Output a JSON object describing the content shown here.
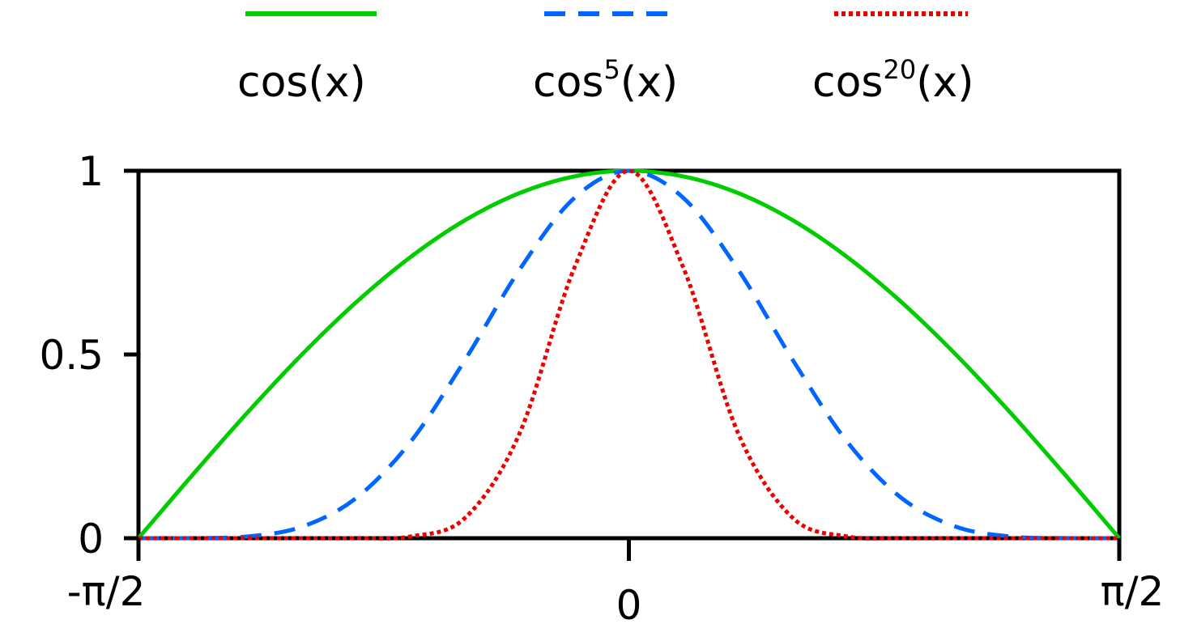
{
  "chart_data": {
    "type": "line",
    "title": "",
    "xlabel": "",
    "ylabel": "",
    "xlim": [
      -1.5708,
      1.5708
    ],
    "ylim": [
      0,
      1
    ],
    "grid": false,
    "legend_position": "top",
    "x_ticks": [
      {
        "value": -1.5708,
        "label": "-π/2"
      },
      {
        "value": 0,
        "label": "0"
      },
      {
        "value": 1.5708,
        "label": "π/2"
      }
    ],
    "y_ticks": [
      {
        "value": 0,
        "label": "0"
      },
      {
        "value": 0.5,
        "label": "0.5"
      },
      {
        "value": 1,
        "label": "1"
      }
    ],
    "x": [
      -1.5708,
      -1.3963,
      -1.2217,
      -1.0472,
      -0.8727,
      -0.6981,
      -0.5236,
      -0.3491,
      -0.1745,
      0,
      0.1745,
      0.3491,
      0.5236,
      0.6981,
      0.8727,
      1.0472,
      1.2217,
      1.3963,
      1.5708
    ],
    "series": [
      {
        "name_base": "cos",
        "name_exp": "",
        "name_arg": "(x)",
        "color": "#00cc00",
        "dash": "solid",
        "values": [
          0,
          0.1736,
          0.342,
          0.5,
          0.6428,
          0.766,
          0.866,
          0.9397,
          0.9848,
          1,
          0.9848,
          0.9397,
          0.866,
          0.766,
          0.6428,
          0.5,
          0.342,
          0.1736,
          0
        ]
      },
      {
        "name_base": "cos",
        "name_exp": "5",
        "name_arg": "(x)",
        "color": "#0066ff",
        "dash": "dashed",
        "values": [
          0,
          0.0002,
          0.0047,
          0.0313,
          0.1099,
          0.2637,
          0.487,
          0.7322,
          0.9263,
          1,
          0.9263,
          0.7322,
          0.487,
          0.2637,
          0.1099,
          0.0313,
          0.0047,
          0.0002,
          0
        ]
      },
      {
        "name_base": "cos",
        "name_exp": "20",
        "name_arg": "(x)",
        "color": "#ee0000",
        "dash": "dotted",
        "values": [
          0,
          0,
          0,
          0,
          0.0001,
          0.0048,
          0.0563,
          0.2874,
          0.7363,
          1,
          0.7363,
          0.2874,
          0.0563,
          0.0048,
          0.0001,
          0,
          0,
          0,
          0
        ]
      }
    ]
  }
}
